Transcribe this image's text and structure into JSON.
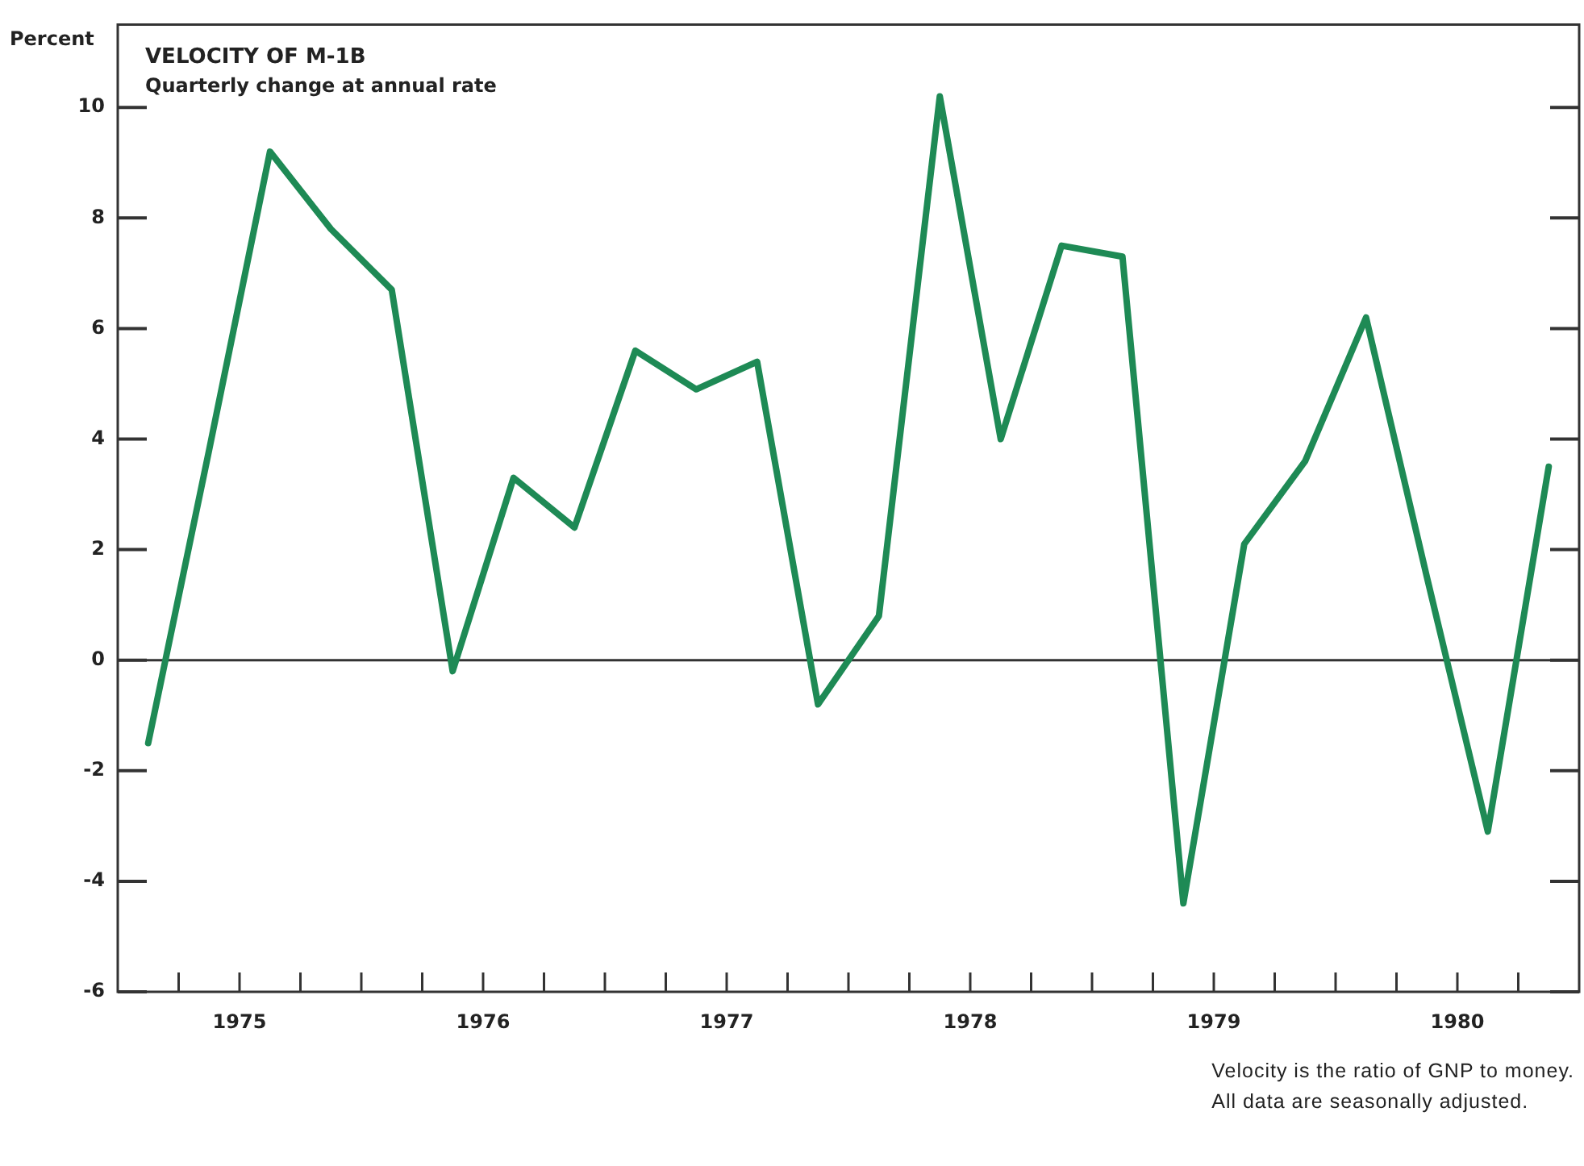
{
  "chart_data": {
    "type": "line",
    "title": "VELOCITY OF M-1B",
    "subtitle": "Quarterly change at annual rate",
    "ylabel": "Percent",
    "annotations": [
      "Velocity is the ratio of GNP to money.",
      "All data are seasonally adjusted."
    ],
    "x": [
      1975.125,
      1975.375,
      1975.625,
      1975.875,
      1976.125,
      1976.375,
      1976.625,
      1976.875,
      1977.125,
      1977.375,
      1977.625,
      1977.875,
      1978.125,
      1978.375,
      1978.625,
      1978.875,
      1979.125,
      1979.375,
      1979.625,
      1979.875,
      1980.125,
      1980.375,
      1980.625,
      1980.875
    ],
    "series": [
      {
        "color": "#1e8a55",
        "values": [
          -1.5,
          3.8,
          9.2,
          7.8,
          6.7,
          -0.2,
          3.3,
          2.4,
          5.6,
          4.9,
          5.4,
          -0.8,
          0.8,
          10.2,
          4.0,
          7.5,
          7.3,
          -4.4,
          2.1,
          3.6,
          6.2,
          1.5,
          -3.1,
          3.5
        ]
      }
    ],
    "xlim": [
      1975,
      1981
    ],
    "xticks": [
      {
        "value": 1975.25,
        "label": null
      },
      {
        "value": 1975.5,
        "label": "1975"
      },
      {
        "value": 1975.75,
        "label": null
      },
      {
        "value": 1976,
        "label": null
      },
      {
        "value": 1976.25,
        "label": null
      },
      {
        "value": 1976.5,
        "label": "1976"
      },
      {
        "value": 1976.75,
        "label": null
      },
      {
        "value": 1977,
        "label": null
      },
      {
        "value": 1977.25,
        "label": null
      },
      {
        "value": 1977.5,
        "label": "1977"
      },
      {
        "value": 1977.75,
        "label": null
      },
      {
        "value": 1978,
        "label": null
      },
      {
        "value": 1978.25,
        "label": null
      },
      {
        "value": 1978.5,
        "label": "1978"
      },
      {
        "value": 1978.75,
        "label": null
      },
      {
        "value": 1979,
        "label": null
      },
      {
        "value": 1979.25,
        "label": null
      },
      {
        "value": 1979.5,
        "label": "1979"
      },
      {
        "value": 1979.75,
        "label": null
      },
      {
        "value": 1980,
        "label": null
      },
      {
        "value": 1980.25,
        "label": null
      },
      {
        "value": 1980.5,
        "label": "1980"
      },
      {
        "value": 1980.75,
        "label": null
      }
    ],
    "ylim": [
      -6,
      11.5
    ],
    "yticks": [
      -6,
      -4,
      -2,
      0,
      2,
      4,
      6,
      8,
      10
    ],
    "ref_lines": [
      {
        "axis": "y",
        "value": 0,
        "color": "#333333"
      }
    ],
    "grid": false,
    "legend": false,
    "marker": "none",
    "line_style": "solid"
  }
}
